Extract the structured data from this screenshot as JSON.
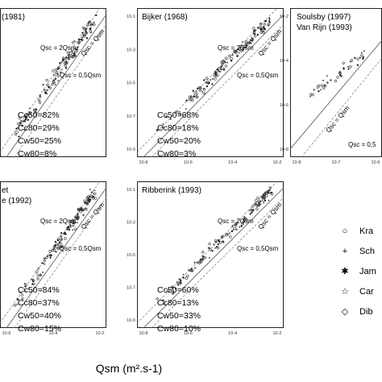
{
  "chart_data": [
    {
      "type": "scatter",
      "title": "(1981)",
      "xlabel": "",
      "ylabel": "",
      "scale": "log-log",
      "reference_lines": [
        "Qsc = 2Qsm",
        "Qsc = Qsm",
        "Qsc = 0,5Qsm"
      ],
      "stats": [
        "Cc50=82%",
        "Cc80=29%",
        "Cw50=25%",
        "Cw80=8%"
      ],
      "x_ticks": [],
      "y_ticks": []
    },
    {
      "type": "scatter",
      "title": "Bijker (1968)",
      "xlabel": "",
      "ylabel": "",
      "scale": "log-log",
      "xlim": [
        1e-08,
        0.01
      ],
      "ylim": [
        1e-08,
        0.01
      ],
      "reference_lines": [
        "Qsc = 2Qsm",
        "Qsc = Qsm",
        "Qsc = 0,5Qsm"
      ],
      "stats": [
        "Cc50=68%",
        "Cc80=18%",
        "Cw50=20%",
        "Cw80=3%"
      ],
      "x_ticks": [
        "10-8",
        "10-6",
        "10-4",
        "10-2"
      ],
      "y_ticks": [
        "10-1",
        "10-3",
        "10-5",
        "10-7",
        "10-9"
      ]
    },
    {
      "type": "scatter",
      "title": "Soulsby (1997)",
      "subtitle": "Van Rijn (1993)",
      "xlabel": "",
      "ylabel": "",
      "scale": "log-log",
      "reference_lines": [
        "Qsc = Qsm",
        "Qsc = 0,5"
      ],
      "stats": [],
      "x_ticks": [
        "10-8",
        "10-7",
        "10-6"
      ],
      "y_ticks": [
        "10-2",
        "10-4",
        "10-6",
        "10-8"
      ]
    },
    {
      "type": "scatter",
      "title": "et",
      "subtitle": "e (1992)",
      "xlabel": "",
      "ylabel": "",
      "scale": "log-log",
      "reference_lines": [
        "Qsc = 2Qsm",
        "Qsc = Qsm",
        "Qsc = 0,5Qsm"
      ],
      "stats": [
        "Cc50=84%",
        "Cc80=37%",
        "Cw50=40%",
        "Cw80=15%"
      ],
      "x_ticks": [
        "10-6",
        "10-4",
        "10-2"
      ],
      "y_ticks": []
    },
    {
      "type": "scatter",
      "title": "Ribberink (1993)",
      "xlabel": "",
      "ylabel": "",
      "scale": "log-log",
      "xlim": [
        1e-08,
        0.01
      ],
      "ylim": [
        1e-08,
        0.01
      ],
      "reference_lines": [
        "Qsc = 2Qsm",
        "Qsc = Qsm",
        "Qsc = 0,5Qsm"
      ],
      "stats": [
        "Cc50=60%",
        "Cc80=13%",
        "Cw50=33%",
        "Cw80=10%"
      ],
      "x_ticks": [
        "10-8",
        "10-6",
        "10-4",
        "10-2"
      ],
      "y_ticks": [
        "10-1",
        "10-3",
        "10-5",
        "10-7",
        "10-9"
      ]
    }
  ],
  "legend": [
    {
      "symbol": "○",
      "label": "Kra"
    },
    {
      "symbol": "+",
      "label": "Sch"
    },
    {
      "symbol": "✱",
      "label": "Jam"
    },
    {
      "symbol": "☆",
      "label": "Car"
    },
    {
      "symbol": "◇",
      "label": "Dib"
    }
  ],
  "shared_xlabel": "Qsm (m².s-1)"
}
